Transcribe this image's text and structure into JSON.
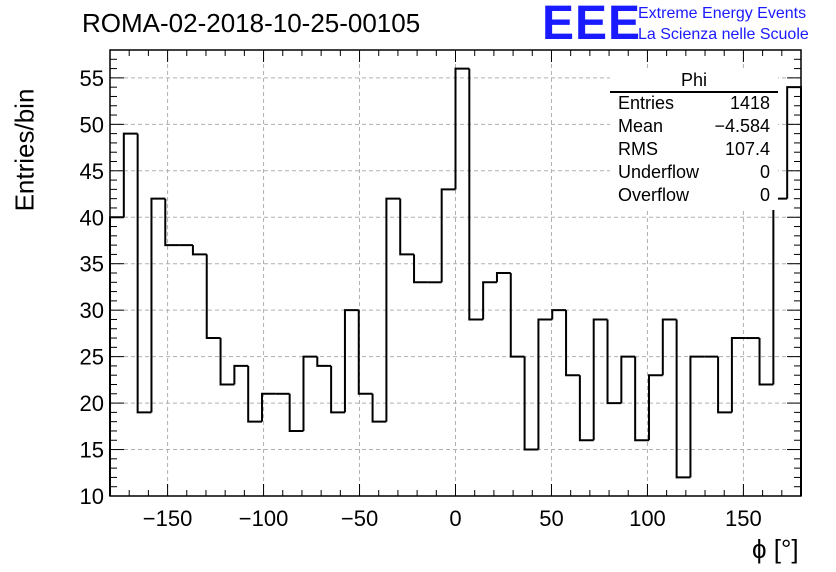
{
  "title": "ROMA-02-2018-10-25-00105",
  "logo": {
    "mark": "EEE",
    "line1": "Extreme Energy Events",
    "line2": "La Scienza nelle Scuole",
    "color": "#1a1aff"
  },
  "stats_box": {
    "name": "Phi",
    "rows": [
      {
        "label": "Entries",
        "value": "1418"
      },
      {
        "label": "Mean",
        "value": "−4.584"
      },
      {
        "label": "RMS",
        "value": "107.4"
      },
      {
        "label": "Underflow",
        "value": "0"
      },
      {
        "label": "Overflow",
        "value": "0"
      }
    ]
  },
  "chart_data": {
    "type": "bar",
    "style": "step-histogram",
    "title": "ROMA-02-2018-10-25-00105",
    "xlabel": "ϕ [°]",
    "ylabel": "Entries/bin",
    "xlim": [
      -180,
      180
    ],
    "ylim": [
      10,
      58
    ],
    "x_ticks": [
      -150,
      -100,
      -50,
      0,
      50,
      100,
      150
    ],
    "x_tick_labels": [
      "−150",
      "−100",
      "−50",
      "0",
      "50",
      "100",
      "150"
    ],
    "y_ticks": [
      10,
      15,
      20,
      25,
      30,
      35,
      40,
      45,
      50,
      55
    ],
    "grid": true,
    "bin_edges_start": -180,
    "bin_width": 7.2,
    "values": [
      40,
      49,
      19,
      42,
      37,
      37,
      36,
      27,
      22,
      24,
      18,
      21,
      21,
      17,
      25,
      24,
      19,
      30,
      21,
      18,
      42,
      36,
      33,
      33,
      43,
      56,
      29,
      33,
      34,
      25,
      15,
      29,
      30,
      23,
      16,
      29,
      20,
      25,
      16,
      23,
      29,
      12,
      25,
      25,
      19,
      27,
      27,
      22,
      42,
      54
    ]
  }
}
